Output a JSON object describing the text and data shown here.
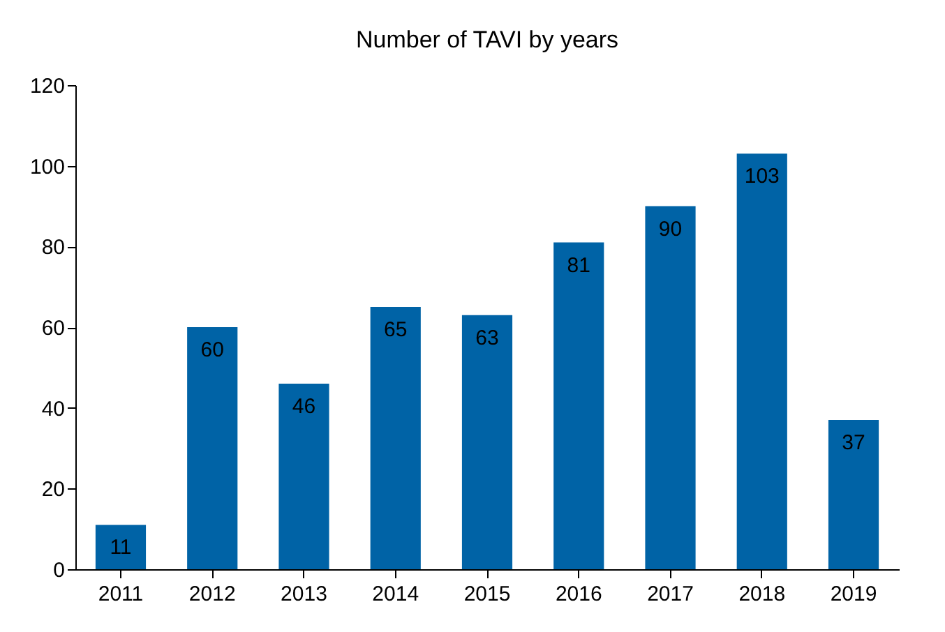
{
  "chart_data": {
    "type": "bar",
    "title": "Number of TAVI by years",
    "categories": [
      "2011",
      "2012",
      "2013",
      "2014",
      "2015",
      "2016",
      "2017",
      "2018",
      "2019"
    ],
    "values": [
      11,
      60,
      46,
      65,
      63,
      81,
      90,
      103,
      37
    ],
    "color": "#0063a6",
    "ylim": [
      0,
      120
    ],
    "yticks": [
      0,
      20,
      40,
      60,
      80,
      100,
      120
    ],
    "data_labels": true,
    "grid": false
  }
}
